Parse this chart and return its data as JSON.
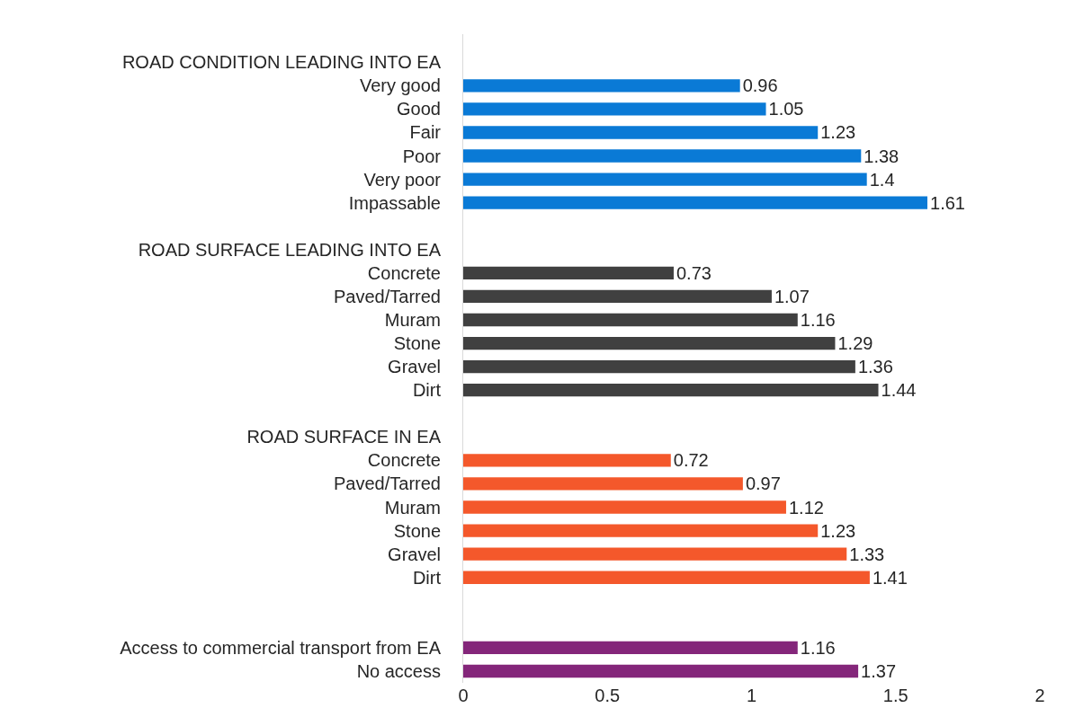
{
  "chart_data": {
    "type": "bar",
    "orientation": "horizontal",
    "categories": [
      "ROAD CONDITION LEADING INTO EA",
      "Very good",
      "Good",
      "Fair",
      "Poor",
      "Very poor",
      "Impassable",
      null,
      "ROAD SURFACE LEADING INTO EA",
      "Concrete",
      "Paved/Tarred",
      "Muram",
      "Stone",
      "Gravel",
      "Dirt",
      null,
      "ROAD SURFACE IN EA",
      "Concrete",
      "Paved/Tarred",
      "Muram",
      "Stone",
      "Gravel",
      "Dirt",
      null,
      null,
      "Access to commercial transport from EA",
      "No access"
    ],
    "values": [
      null,
      0.96,
      1.05,
      1.23,
      1.38,
      1.4,
      1.61,
      null,
      null,
      0.73,
      1.07,
      1.16,
      1.29,
      1.36,
      1.44,
      null,
      null,
      0.72,
      0.97,
      1.12,
      1.23,
      1.33,
      1.41,
      null,
      null,
      1.16,
      1.37
    ],
    "colors": [
      null,
      "#0a7ad6",
      "#0a7ad6",
      "#0a7ad6",
      "#0a7ad6",
      "#0a7ad6",
      "#0a7ad6",
      null,
      null,
      "#404040",
      "#404040",
      "#404040",
      "#404040",
      "#404040",
      "#404040",
      null,
      null,
      "#f4582b",
      "#f4582b",
      "#f4582b",
      "#f4582b",
      "#f4582b",
      "#f4582b",
      null,
      null,
      "#84267a",
      "#84267a"
    ],
    "xlim": [
      0,
      2
    ],
    "xticks": [
      0,
      0.5,
      1,
      1.5,
      2
    ],
    "data_labels": true,
    "legend": false
  }
}
